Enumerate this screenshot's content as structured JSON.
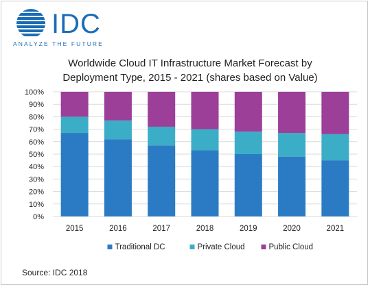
{
  "brand": {
    "name": "IDC",
    "tagline": "ANALYZE THE FUTURE",
    "color": "#1a6db5"
  },
  "chart_data": {
    "type": "bar",
    "stacked": true,
    "title_line1": "Worldwide Cloud IT Infrastructure Market Forecast by",
    "title_line2": "Deployment Type, 2015 - 2021 (shares based on Value)",
    "categories": [
      "2015",
      "2016",
      "2017",
      "2018",
      "2019",
      "2020",
      "2021"
    ],
    "series": [
      {
        "name": "Traditional DC",
        "color": "#2b7bc4",
        "values": [
          67,
          62,
          57,
          53,
          50,
          48,
          45
        ]
      },
      {
        "name": "Private Cloud",
        "color": "#3cadc6",
        "values": [
          13,
          15,
          15,
          17,
          18,
          19,
          21
        ]
      },
      {
        "name": "Public Cloud",
        "color": "#9b3f98",
        "values": [
          20,
          23,
          28,
          30,
          32,
          33,
          34
        ]
      }
    ],
    "ylim": [
      0,
      100
    ],
    "yticks": [
      "0%",
      "10%",
      "20%",
      "30%",
      "40%",
      "50%",
      "60%",
      "70%",
      "80%",
      "90%",
      "100%"
    ],
    "grid": true,
    "legend_position": "bottom"
  },
  "source": "Source: IDC 2018"
}
